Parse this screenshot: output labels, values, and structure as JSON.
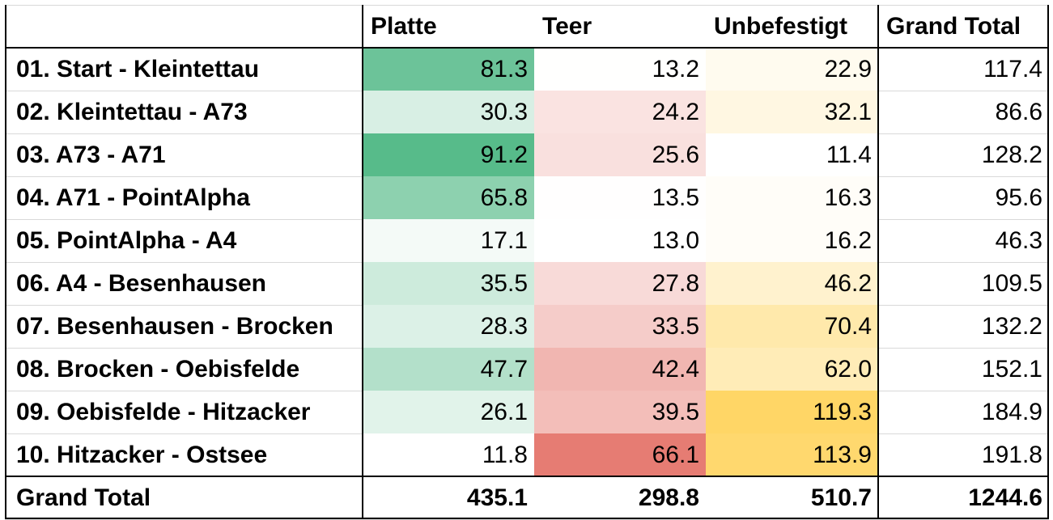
{
  "chart_data": {
    "type": "table",
    "columns": [
      "",
      "Platte",
      "Teer",
      "Unbefestigt",
      "Grand Total"
    ],
    "rows": [
      {
        "label": "01. Start - Kleintettau",
        "values": [
          "81.3",
          "13.2",
          "22.9",
          "117.4"
        ]
      },
      {
        "label": "02. Kleintettau - A73",
        "values": [
          "30.3",
          "24.2",
          "32.1",
          "86.6"
        ]
      },
      {
        "label": "03. A73 - A71",
        "values": [
          "91.2",
          "25.6",
          "11.4",
          "128.2"
        ]
      },
      {
        "label": "04. A71 - PointAlpha",
        "values": [
          "65.8",
          "13.5",
          "16.3",
          "95.6"
        ]
      },
      {
        "label": "05. PointAlpha - A4",
        "values": [
          "17.1",
          "13.0",
          "16.2",
          "46.3"
        ]
      },
      {
        "label": "06. A4 - Besenhausen",
        "values": [
          "35.5",
          "27.8",
          "46.2",
          "109.5"
        ]
      },
      {
        "label": "07. Besenhausen - Brocken",
        "values": [
          "28.3",
          "33.5",
          "70.4",
          "132.2"
        ]
      },
      {
        "label": "08. Brocken - Oebisfelde",
        "values": [
          "47.7",
          "42.4",
          "62.0",
          "152.1"
        ]
      },
      {
        "label": "09. Oebisfelde - Hitzacker",
        "values": [
          "26.1",
          "39.5",
          "119.3",
          "184.9"
        ]
      },
      {
        "label": "10. Hitzacker - Ostsee",
        "values": [
          "11.8",
          "66.1",
          "113.9",
          "191.8"
        ]
      }
    ],
    "total": {
      "label": "Grand Total",
      "values": [
        "435.1",
        "298.8",
        "510.7",
        "1244.6"
      ]
    },
    "heatmap_colors": {
      "Platte": "#57bb8a",
      "Teer": "#e67c73",
      "Unbefestigt": "#ffd666"
    }
  }
}
